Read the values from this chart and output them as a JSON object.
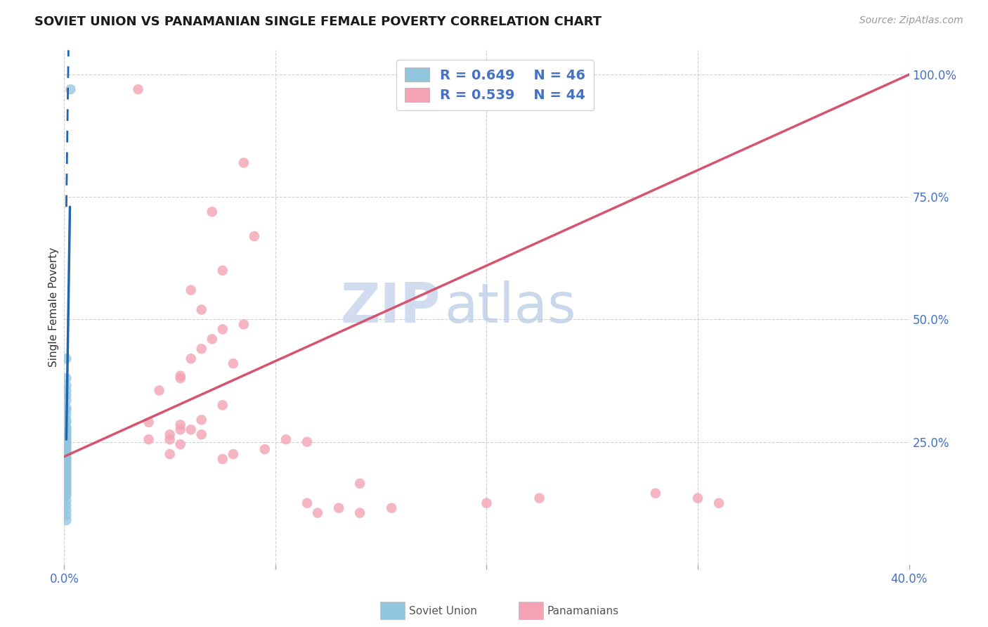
{
  "title": "SOVIET UNION VS PANAMANIAN SINGLE FEMALE POVERTY CORRELATION CHART",
  "source": "Source: ZipAtlas.com",
  "ylabel": "Single Female Poverty",
  "watermark_zip": "ZIP",
  "watermark_atlas": "atlas",
  "legend_blue_r": "R = 0.649",
  "legend_blue_n": "N = 46",
  "legend_pink_r": "R = 0.539",
  "legend_pink_n": "N = 44",
  "blue_color": "#92c5de",
  "pink_color": "#f4a3b5",
  "blue_line_color": "#2166ac",
  "pink_line_color": "#d6546e",
  "text_color": "#4472c4",
  "axis_text_color": "#4472c4",
  "background_color": "#ffffff",
  "soviet_points_x": [
    0.003,
    0.001,
    0.001,
    0.001,
    0.001,
    0.001,
    0.001,
    0.001,
    0.001,
    0.001,
    0.001,
    0.001,
    0.001,
    0.001,
    0.001,
    0.001,
    0.001,
    0.001,
    0.001,
    0.001,
    0.001,
    0.001,
    0.001,
    0.001,
    0.001,
    0.001,
    0.001,
    0.001,
    0.001,
    0.001,
    0.001,
    0.001,
    0.001,
    0.001,
    0.001,
    0.001,
    0.001,
    0.001,
    0.001,
    0.001,
    0.001,
    0.001,
    0.001,
    0.001,
    0.001,
    0.001
  ],
  "soviet_points_y": [
    0.97,
    0.42,
    0.38,
    0.365,
    0.355,
    0.345,
    0.335,
    0.32,
    0.315,
    0.305,
    0.295,
    0.29,
    0.28,
    0.275,
    0.27,
    0.265,
    0.26,
    0.255,
    0.25,
    0.245,
    0.24,
    0.235,
    0.23,
    0.225,
    0.22,
    0.215,
    0.21,
    0.205,
    0.2,
    0.195,
    0.19,
    0.185,
    0.18,
    0.175,
    0.17,
    0.165,
    0.16,
    0.155,
    0.15,
    0.145,
    0.14,
    0.13,
    0.12,
    0.11,
    0.1,
    0.09
  ],
  "panama_points_x": [
    0.035,
    0.14,
    0.085,
    0.07,
    0.09,
    0.075,
    0.06,
    0.085,
    0.07,
    0.06,
    0.055,
    0.065,
    0.075,
    0.065,
    0.08,
    0.055,
    0.045,
    0.075,
    0.065,
    0.055,
    0.05,
    0.055,
    0.065,
    0.055,
    0.05,
    0.04,
    0.06,
    0.05,
    0.04,
    0.28,
    0.3,
    0.31,
    0.115,
    0.105,
    0.095,
    0.08,
    0.075,
    0.2,
    0.225,
    0.115,
    0.13,
    0.14,
    0.155,
    0.12
  ],
  "panama_points_y": [
    0.97,
    0.165,
    0.82,
    0.72,
    0.67,
    0.6,
    0.56,
    0.49,
    0.46,
    0.42,
    0.38,
    0.52,
    0.48,
    0.44,
    0.41,
    0.385,
    0.355,
    0.325,
    0.295,
    0.275,
    0.255,
    0.285,
    0.265,
    0.245,
    0.225,
    0.29,
    0.275,
    0.265,
    0.255,
    0.145,
    0.135,
    0.125,
    0.25,
    0.255,
    0.235,
    0.225,
    0.215,
    0.125,
    0.135,
    0.125,
    0.115,
    0.105,
    0.115,
    0.105
  ],
  "blue_solid_line": [
    [
      0.001,
      0.0027
    ],
    [
      0.255,
      0.73
    ]
  ],
  "blue_dashed_line": [
    [
      0.001,
      0.002
    ],
    [
      0.73,
      1.05
    ]
  ],
  "pink_line": [
    [
      0.0,
      0.4
    ],
    [
      0.22,
      1.0
    ]
  ],
  "xlim": [
    0.0,
    0.4
  ],
  "ylim": [
    0.0,
    1.05
  ],
  "xgrid_vals": [
    0.0,
    0.1,
    0.2,
    0.3,
    0.4
  ],
  "ygrid_vals": [
    0.25,
    0.5,
    0.75,
    1.0
  ]
}
